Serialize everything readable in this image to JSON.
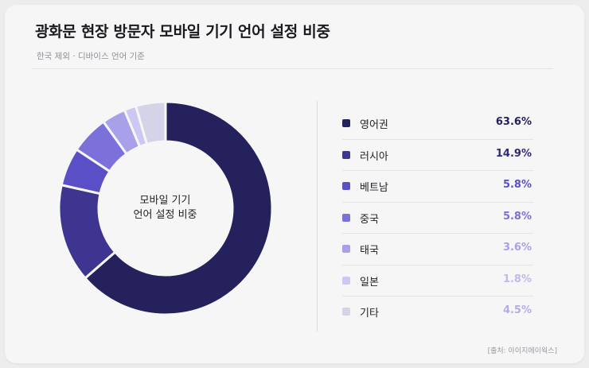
{
  "header": {
    "title": "광화문 현장 방문자 모바일 기기 언어 설정 비중",
    "subtitle": "한국 제외 · 디바이스 언어 기준"
  },
  "center_label_line1": "모바일 기기",
  "center_label_line2": "언어 설정 비중",
  "source": "[출처: 아이지에이웍스]",
  "chart_data": {
    "type": "pie",
    "donut": true,
    "title": "광화문 현장 방문자 모바일 기기 언어 설정 비중",
    "subtitle": "한국 제외 · 디바이스 언어 기준",
    "legend_position": "right",
    "categories": [
      "영어권",
      "러시아",
      "베트남",
      "중국",
      "태국",
      "일본",
      "기타"
    ],
    "values": [
      63.6,
      14.9,
      5.8,
      5.8,
      3.6,
      1.8,
      4.5
    ],
    "labels": [
      "63.6%",
      "14.9%",
      "5.8%",
      "5.8%",
      "3.6%",
      "1.8%",
      "4.5%"
    ],
    "colors": [
      "#25215d",
      "#3d3590",
      "#5b4fc7",
      "#7c71db",
      "#a9a0ea",
      "#cdc8f3",
      "#d5d3e7"
    ],
    "value_colors": [
      "#25215d",
      "#2f2a78",
      "#5b4fc7",
      "#7c71db",
      "#a9a0ea",
      "#bfb9ee",
      "#b4aee6"
    ]
  }
}
